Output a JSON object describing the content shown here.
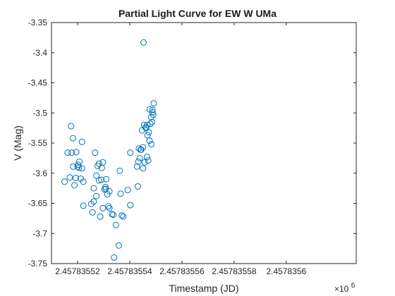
{
  "chart_data": {
    "type": "scatter",
    "title": "Partial Light Curve for EW W UMa",
    "xlabel": "Timestamp (JD)",
    "ylabel": "V (Mag)",
    "x_exponent_label": "×10",
    "x_exponent_value": "6",
    "xlim": [
      2457835.51,
      2457835.6268
    ],
    "ylim": [
      -3.75,
      -3.35
    ],
    "y_reversed": true,
    "grid": false,
    "marker": "circle-open",
    "marker_color": "#0072BD",
    "x_ticks": [
      2457835.52,
      2457835.54,
      2457835.56,
      2457835.58,
      2457835.6
    ],
    "x_tick_labels": [
      "2.45783552",
      "2.45783554",
      "2.45783556",
      "2.45783558",
      "2.4578356"
    ],
    "y_ticks": [
      -3.35,
      -3.4,
      -3.45,
      -3.5,
      -3.55,
      -3.6,
      -3.65,
      -3.7,
      -3.75
    ],
    "y_tick_labels": [
      "-3.35",
      "-3.4",
      "-3.45",
      "-3.5",
      "-3.55",
      "-3.6",
      "-3.65",
      "-3.7",
      "-3.75"
    ],
    "points": [
      [
        2457835.515,
        -3.614
      ],
      [
        2457835.5162,
        -3.566
      ],
      [
        2457835.517,
        -3.607
      ],
      [
        2457835.5175,
        -3.522
      ],
      [
        2457835.5177,
        -3.566
      ],
      [
        2457835.5182,
        -3.542
      ],
      [
        2457835.5183,
        -3.589
      ],
      [
        2457835.5188,
        -3.62
      ],
      [
        2457835.5193,
        -3.608
      ],
      [
        2457835.5195,
        -3.565
      ],
      [
        2457835.52,
        -3.589
      ],
      [
        2457835.5202,
        -3.586
      ],
      [
        2457835.5205,
        -3.591
      ],
      [
        2457835.5207,
        -3.581
      ],
      [
        2457835.5212,
        -3.609
      ],
      [
        2457835.5217,
        -3.548
      ],
      [
        2457835.5217,
        -3.592
      ],
      [
        2457835.5222,
        -3.654
      ],
      [
        2457835.5222,
        -3.614
      ],
      [
        2457835.5252,
        -3.651
      ],
      [
        2457835.5257,
        -3.665
      ],
      [
        2457835.5262,
        -3.625
      ],
      [
        2457835.5262,
        -3.647
      ],
      [
        2457835.5267,
        -3.566
      ],
      [
        2457835.5272,
        -3.604
      ],
      [
        2457835.5272,
        -3.638
      ],
      [
        2457835.5277,
        -3.588
      ],
      [
        2457835.5282,
        -3.584
      ],
      [
        2457835.5282,
        -3.612
      ],
      [
        2457835.5287,
        -3.672
      ],
      [
        2457835.5291,
        -3.611
      ],
      [
        2457835.5293,
        -3.591
      ],
      [
        2457835.5297,
        -3.582
      ],
      [
        2457835.5297,
        -3.658
      ],
      [
        2457835.5303,
        -3.627
      ],
      [
        2457835.5307,
        -3.623
      ],
      [
        2457835.5308,
        -3.626
      ],
      [
        2457835.531,
        -3.61
      ],
      [
        2457835.5314,
        -3.635
      ],
      [
        2457835.5318,
        -3.655
      ],
      [
        2457835.5322,
        -3.658
      ],
      [
        2457835.5322,
        -3.63
      ],
      [
        2457835.5332,
        -3.668
      ],
      [
        2457835.5337,
        -3.669
      ],
      [
        2457835.534,
        -3.74
      ],
      [
        2457835.5347,
        -3.686
      ],
      [
        2457835.5358,
        -3.72
      ],
      [
        2457835.5362,
        -3.596
      ],
      [
        2457835.5365,
        -3.634
      ],
      [
        2457835.537,
        -3.67
      ],
      [
        2457835.5375,
        -3.672
      ],
      [
        2457835.5392,
        -3.628
      ],
      [
        2457835.5402,
        -3.566
      ],
      [
        2457835.5402,
        -3.653
      ],
      [
        2457835.5428,
        -3.589
      ],
      [
        2457835.5431,
        -3.622
      ],
      [
        2457835.5433,
        -3.581
      ],
      [
        2457835.5435,
        -3.559
      ],
      [
        2457835.5438,
        -3.575
      ],
      [
        2457835.5442,
        -3.561
      ],
      [
        2457835.5444,
        -3.561
      ],
      [
        2457835.5447,
        -3.529
      ],
      [
        2457835.5451,
        -3.592
      ],
      [
        2457835.5451,
        -3.557
      ],
      [
        2457835.5453,
        -3.383
      ],
      [
        2457835.5455,
        -3.52
      ],
      [
        2457835.5457,
        -3.582
      ],
      [
        2457835.546,
        -3.524
      ],
      [
        2457835.5463,
        -3.525
      ],
      [
        2457835.5466,
        -3.573
      ],
      [
        2457835.5467,
        -3.52
      ],
      [
        2457835.5468,
        -3.537
      ],
      [
        2457835.5471,
        -3.579
      ],
      [
        2457835.5473,
        -3.532
      ],
      [
        2457835.5476,
        -3.494
      ],
      [
        2457835.5476,
        -3.546
      ],
      [
        2457835.5479,
        -3.518
      ],
      [
        2457835.5482,
        -3.507
      ],
      [
        2457835.5483,
        -3.552
      ],
      [
        2457835.5485,
        -3.515
      ],
      [
        2457835.5487,
        -3.499
      ],
      [
        2457835.5487,
        -3.495
      ],
      [
        2457835.549,
        -3.503
      ],
      [
        2457835.5492,
        -3.484
      ]
    ]
  }
}
